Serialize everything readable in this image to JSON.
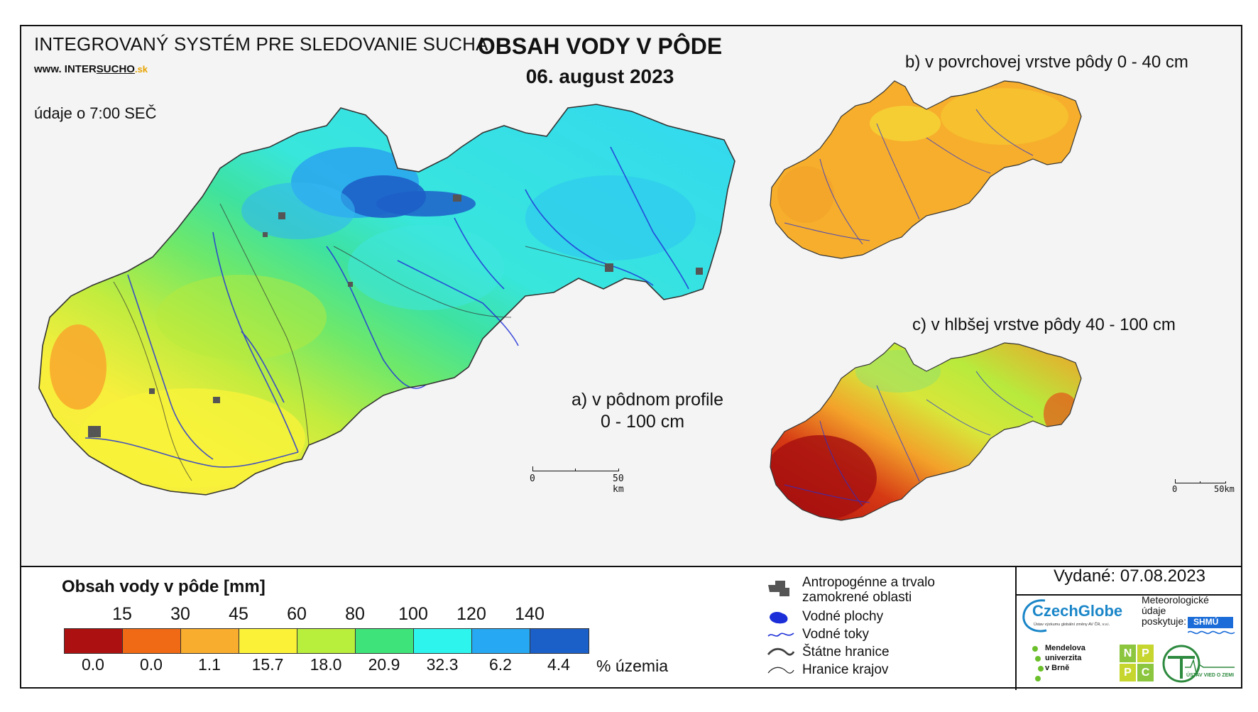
{
  "header": {
    "system_title": "INTEGROVANÝ SYSTÉM PRE SLEDOVANIE SUCHA",
    "website_prefix": "www. INTER",
    "website_brand": "SUCHO",
    "website_suffix": ".sk",
    "data_time": "údaje o 7:00 SEČ",
    "main_title": "OBSAH VODY V PÔDE",
    "main_date": "06. august 2023"
  },
  "maps": {
    "a_line1": "a) v pôdnom profile",
    "a_line2": "0 - 100 cm",
    "b_label": "b) v povrchovej vrstve pôdy 0 - 40 cm",
    "c_label": "c) v hlbšej vrstve pôdy 40 - 100 cm",
    "scale_main_zero": "0",
    "scale_main_km": "50 km",
    "scale_small_zero": "0",
    "scale_small_km": "50km"
  },
  "legend": {
    "title": "Obsah vody v pôde  [mm]",
    "thresholds": [
      "15",
      "30",
      "45",
      "60",
      "80",
      "100",
      "120",
      "140"
    ],
    "classes": [
      {
        "color": "#ad1010",
        "percent": "0.0"
      },
      {
        "color": "#f06a16",
        "percent": "0.0"
      },
      {
        "color": "#f8ad2e",
        "percent": "1.1"
      },
      {
        "color": "#fbf238",
        "percent": "15.7"
      },
      {
        "color": "#b8ee3c",
        "percent": "18.0"
      },
      {
        "color": "#3ee47a",
        "percent": "20.9"
      },
      {
        "color": "#2ef4ee",
        "percent": "32.3"
      },
      {
        "color": "#27a8f2",
        "percent": "6.2"
      },
      {
        "color": "#1b5fc8",
        "percent": "4.4"
      }
    ],
    "percent_label": "% územia"
  },
  "symbols": {
    "anthropogenic_1": "Antropogénne a trvalo",
    "anthropogenic_2": "zamokrené oblasti",
    "water_bodies": "Vodné plochy",
    "streams": "Vodné toky",
    "state_border": "Štátne hranice",
    "region_border": "Hranice krajov"
  },
  "footer": {
    "issued": "Vydané: 07.08.2023",
    "czechglobe": "CzechGlobe",
    "czechglobe_sub": "Ústav výzkumu globální změny AV ČR, v.v.i.",
    "meteo_1": "Meteorologické",
    "meteo_2": "údaje",
    "meteo_3": "poskytuje:",
    "shmu": "SHMÚ",
    "mendel_1": "Mendelova",
    "mendel_2": "univerzita",
    "mendel_3": "v Brně",
    "nppc": [
      "N",
      "P",
      "P",
      "C"
    ],
    "uvz": "ÚSTAV VIED O ZEMI"
  }
}
